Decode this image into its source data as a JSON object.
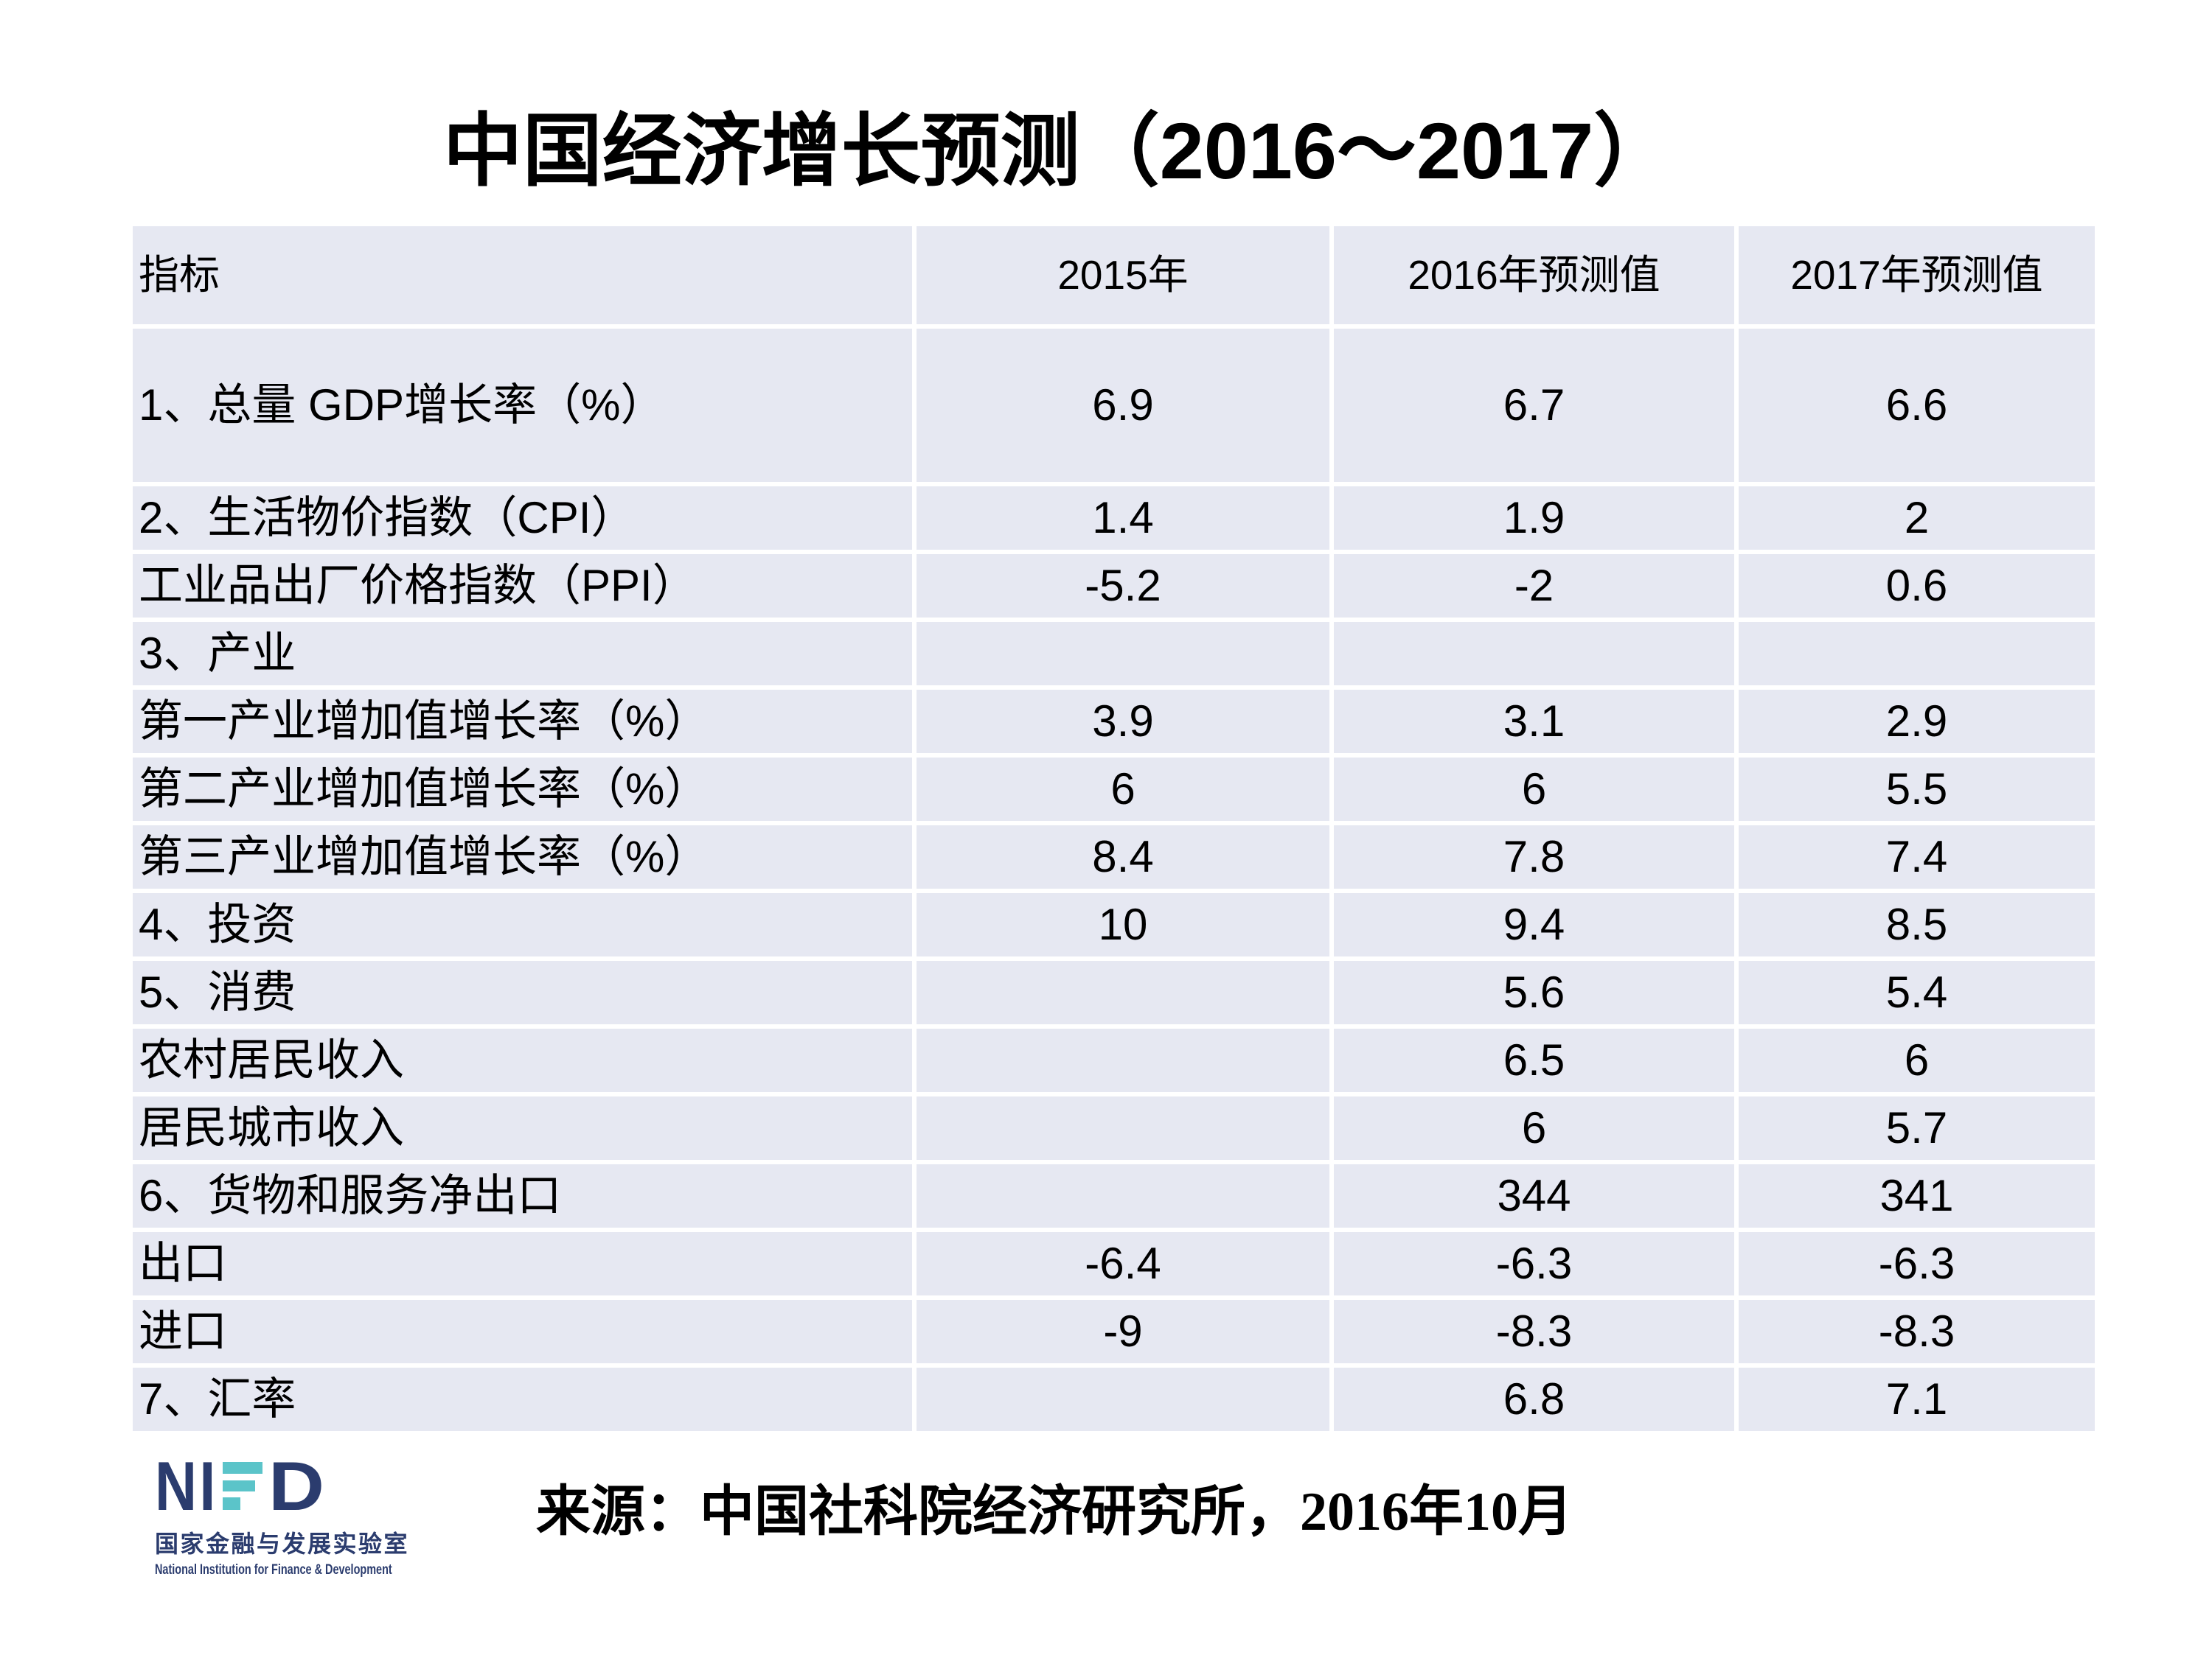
{
  "title": "中国经济增长预测（2016～2017）",
  "table": {
    "columns": [
      "指标",
      "2015年",
      "2016年预测值",
      "2017年预测值"
    ],
    "rows": [
      {
        "label": "1、总量 GDP增长率（%）",
        "v2015": "6.9",
        "v2016": "6.7",
        "v2017": "6.6"
      },
      {
        "label": "2、生活物价指数（CPI）",
        "v2015": "1.4",
        "v2016": "1.9",
        "v2017": "2"
      },
      {
        "label": "工业品出厂价格指数（PPI）",
        "v2015": "-5.2",
        "v2016": "-2",
        "v2017": "0.6"
      },
      {
        "label": "3、产业",
        "v2015": "",
        "v2016": "",
        "v2017": ""
      },
      {
        "label": "第一产业增加值增长率（%）",
        "v2015": "3.9",
        "v2016": "3.1",
        "v2017": "2.9"
      },
      {
        "label": "第二产业增加值增长率（%）",
        "v2015": "6",
        "v2016": "6",
        "v2017": "5.5"
      },
      {
        "label": "第三产业增加值增长率（%）",
        "v2015": "8.4",
        "v2016": "7.8",
        "v2017": "7.4"
      },
      {
        "label": "4、投资",
        "v2015": "10",
        "v2016": "9.4",
        "v2017": "8.5"
      },
      {
        "label": "5、消费",
        "v2015": "",
        "v2016": "5.6",
        "v2017": "5.4"
      },
      {
        "label": "农村居民收入",
        "v2015": "",
        "v2016": "6.5",
        "v2017": "6"
      },
      {
        "label": "居民城市收入",
        "v2015": "",
        "v2016": "6",
        "v2017": "5.7"
      },
      {
        "label": "6、货物和服务净出口",
        "v2015": "",
        "v2016": "344",
        "v2017": "341"
      },
      {
        "label": "出口",
        "v2015": "-6.4",
        "v2016": "-6.3",
        "v2017": "-6.3"
      },
      {
        "label": "进口",
        "v2015": "-9",
        "v2016": "-8.3",
        "v2017": "-8.3"
      },
      {
        "label": "7、汇率",
        "v2015": "",
        "v2016": "6.8",
        "v2017": "7.1"
      }
    ]
  },
  "footer": {
    "logo": {
      "part1": "NI",
      "part2": "D",
      "cn": "国家金融与发展实验室",
      "en": "National Institution for Finance & Development",
      "navy": "#2b3c6e",
      "teal": "#5bc4c9"
    },
    "source": "来源：中国社科院经济研究所，2016年10月"
  }
}
